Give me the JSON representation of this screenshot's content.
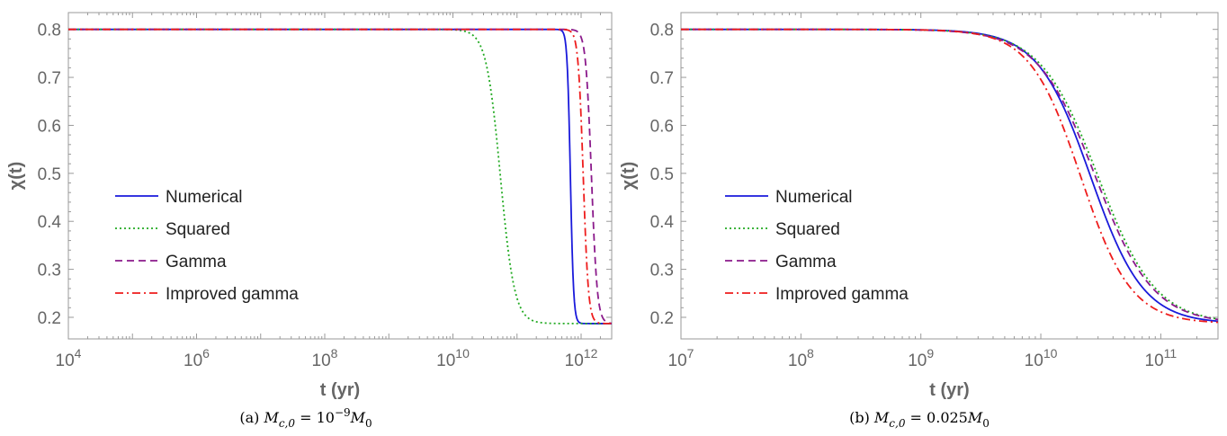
{
  "chart_data": [
    {
      "type": "line",
      "caption": "(a) M_c,0 = 10^{-9} M_0",
      "xlabel": "t (yr)",
      "ylabel": "χ(t)",
      "xscale": "log",
      "xlim": [
        10000,
        3000000000000
      ],
      "ylim": [
        0.155,
        0.835
      ],
      "xticks": [
        {
          "value": 10000,
          "base": "10",
          "exp": "4"
        },
        {
          "value": 1000000,
          "base": "10",
          "exp": "6"
        },
        {
          "value": 100000000,
          "base": "10",
          "exp": "8"
        },
        {
          "value": 10000000000,
          "base": "10",
          "exp": "10"
        },
        {
          "value": 1000000000000,
          "base": "10",
          "exp": "12"
        }
      ],
      "yticks": [
        "0.2",
        "0.3",
        "0.4",
        "0.5",
        "0.6",
        "0.7",
        "0.8"
      ],
      "legend_position": "center-left",
      "grid": false,
      "series": [
        {
          "name": "Numerical",
          "color": "#1a1adb",
          "style": "solid",
          "y_start": 0.8,
          "y_end": 0.187,
          "t_mid": 680000000000,
          "width_decades": 0.025
        },
        {
          "name": "Squared",
          "color": "#22aa22",
          "style": "dotted",
          "y_start": 0.8,
          "y_end": 0.187,
          "t_mid": 55000000000,
          "width_decades": 0.11
        },
        {
          "name": "Gamma",
          "color": "#8b1a8b",
          "style": "dashed",
          "y_start": 0.8,
          "y_end": 0.187,
          "t_mid": 1450000000000,
          "width_decades": 0.045
        },
        {
          "name": "Improved gamma",
          "color": "#ee1c1c",
          "style": "dashdot",
          "y_start": 0.8,
          "y_end": 0.187,
          "t_mid": 1080000000000,
          "width_decades": 0.04
        }
      ]
    },
    {
      "type": "line",
      "caption": "(b) M_c,0 = 0.025 M_0",
      "xlabel": "t (yr)",
      "ylabel": "χ(t)",
      "xscale": "log",
      "xlim": [
        10000000,
        300000000000
      ],
      "ylim": [
        0.155,
        0.835
      ],
      "xticks": [
        {
          "value": 10000000,
          "base": "10",
          "exp": "7"
        },
        {
          "value": 100000000,
          "base": "10",
          "exp": "8"
        },
        {
          "value": 1000000000,
          "base": "10",
          "exp": "9"
        },
        {
          "value": 10000000000,
          "base": "10",
          "exp": "10"
        },
        {
          "value": 100000000000,
          "base": "10",
          "exp": "11"
        }
      ],
      "yticks": [
        "0.2",
        "0.3",
        "0.4",
        "0.5",
        "0.6",
        "0.7",
        "0.8"
      ],
      "legend_position": "center-left",
      "grid": false,
      "series": [
        {
          "name": "Numerical",
          "color": "#1a1adb",
          "style": "solid",
          "y_start": 0.8,
          "y_end": 0.187,
          "t_mid": 26000000000,
          "width_decades": 0.22
        },
        {
          "name": "Squared",
          "color": "#22aa22",
          "style": "dotted",
          "y_start": 0.8,
          "y_end": 0.187,
          "t_mid": 30000000000,
          "width_decades": 0.24
        },
        {
          "name": "Gamma",
          "color": "#8b1a8b",
          "style": "dashed",
          "y_start": 0.8,
          "y_end": 0.187,
          "t_mid": 28500000000,
          "width_decades": 0.24
        },
        {
          "name": "Improved gamma",
          "color": "#ee1c1c",
          "style": "dashdot",
          "y_start": 0.8,
          "y_end": 0.187,
          "t_mid": 21500000000,
          "width_decades": 0.21
        }
      ]
    }
  ]
}
